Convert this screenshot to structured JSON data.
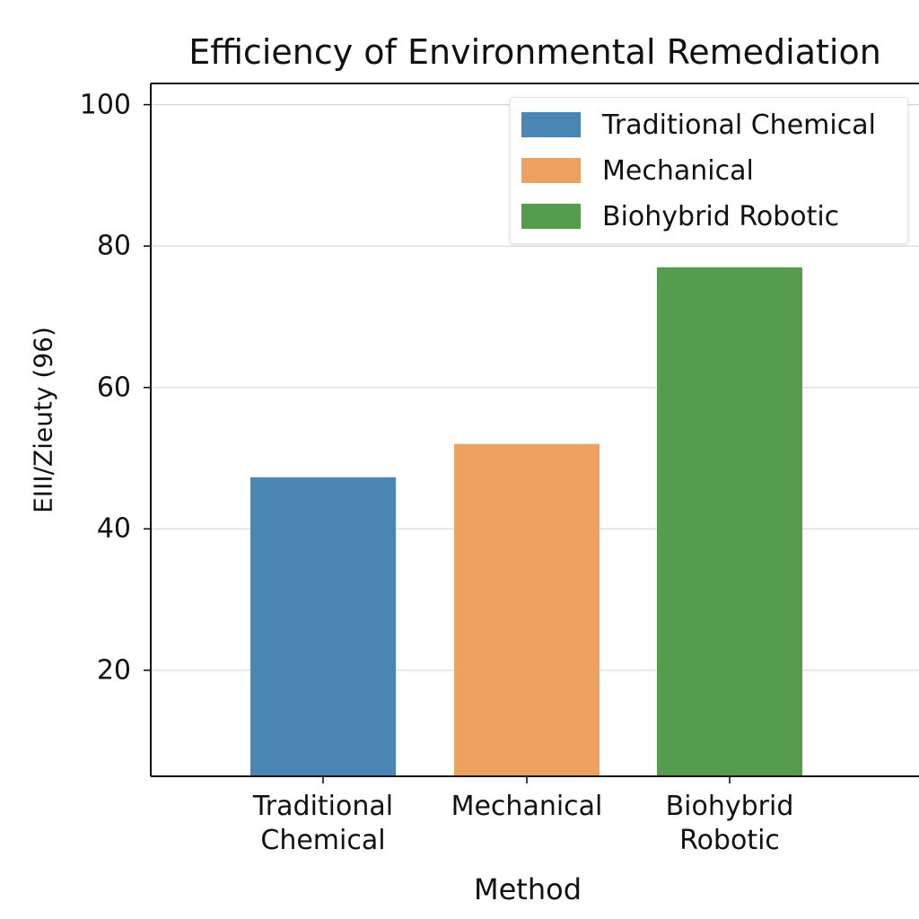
{
  "chart_data": {
    "type": "bar",
    "title": "Efficiency of Environmental Remediation",
    "xlabel": "Method",
    "ylabel": "EIII/Zieuty (96)",
    "categories": [
      "Traditional Chemical",
      "Mechanical",
      "Biohybrid Robotic"
    ],
    "category_lines": [
      [
        "Traditional",
        "Chemical"
      ],
      [
        "Mechanical"
      ],
      [
        "Biohybrid",
        "Robotic"
      ]
    ],
    "values": [
      47.3,
      52,
      77
    ],
    "colors": [
      "#4a86b4",
      "#eca25e",
      "#559c4d"
    ],
    "ylim": [
      5,
      103
    ],
    "yticks": [
      20,
      40,
      60,
      80,
      100
    ],
    "grid": "horizontal",
    "legend": {
      "placement": "top-right",
      "entries": [
        "Traditional Chemical",
        "Mechanical",
        "Biohybrid Robotic"
      ]
    }
  }
}
